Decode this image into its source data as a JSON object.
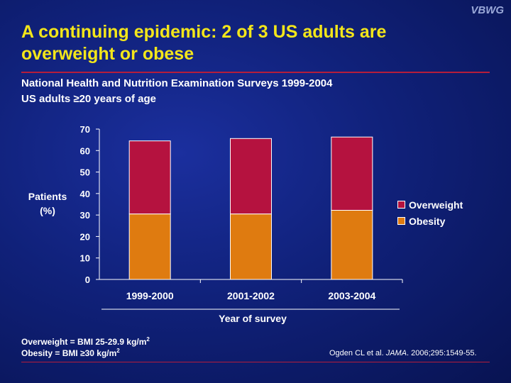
{
  "logo": "VBWG",
  "title": "A continuing epidemic: 2 of 3 US adults are overweight or obese",
  "subtitle_line1": "National Health and Nutrition Examination Surveys 1999-2004",
  "subtitle_line2": "US adults ≥20 years of age",
  "footnote_overweight": "Overweight = BMI 25-29.9 kg/m",
  "footnote_obesity": "Obesity = BMI ≥30 kg/m",
  "footnote_sup": "2",
  "citation_prefix": "Ogden CL et al.",
  "citation_journal": "JAMA",
  "citation_suffix": ". 2006;295:1549-55.",
  "colors": {
    "overweight": "#b5123f",
    "obesity": "#df7b10",
    "title": "#f3e61a"
  },
  "chart_data": {
    "type": "bar",
    "stacked": true,
    "categories": [
      "1999-2000",
      "2001-2002",
      "2003-2004"
    ],
    "series": [
      {
        "name": "Obesity",
        "values": [
          30.5,
          30.5,
          32.2
        ],
        "color": "#df7b10"
      },
      {
        "name": "Overweight",
        "values": [
          34.0,
          35.1,
          34.1
        ],
        "color": "#b5123f"
      }
    ],
    "ylabel": "Patients (%)",
    "xlabel": "Year of survey",
    "ylim": [
      0,
      70
    ],
    "yticks": [
      0,
      10,
      20,
      30,
      40,
      50,
      60,
      70
    ],
    "legend_position": "right"
  }
}
